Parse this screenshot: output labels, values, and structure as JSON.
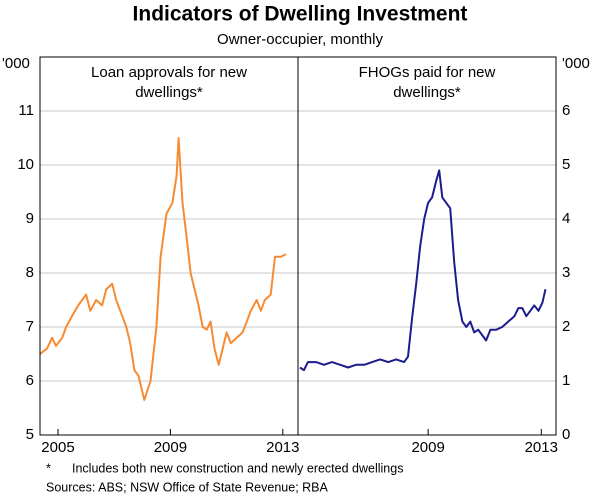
{
  "title": "Indicators of Dwelling Investment",
  "subtitle": "Owner-occupier, monthly",
  "chart_data": [
    {
      "type": "line",
      "title": [
        "Loan approvals for new",
        "dwellings*"
      ],
      "y_unit": "'000",
      "xlim": [
        2004.36,
        2013.54
      ],
      "xticks": [
        2005,
        2009,
        2013
      ],
      "ylim": [
        5,
        12
      ],
      "yticks": [
        5,
        6,
        7,
        8,
        9,
        10,
        11
      ],
      "grid": true,
      "series": [
        {
          "name": "Loan approvals for new dwellings",
          "color": "#f68b33",
          "x": [
            2004.36,
            2004.61,
            2004.79,
            2004.93,
            2005.15,
            2005.29,
            2005.5,
            2005.72,
            2005.86,
            2006.0,
            2006.15,
            2006.36,
            2006.57,
            2006.72,
            2006.93,
            2007.07,
            2007.29,
            2007.43,
            2007.57,
            2007.72,
            2007.86,
            2008.07,
            2008.29,
            2008.5,
            2008.65,
            2008.86,
            2009.07,
            2009.22,
            2009.29,
            2009.43,
            2009.57,
            2009.72,
            2009.86,
            2010.0,
            2010.15,
            2010.29,
            2010.43,
            2010.57,
            2010.72,
            2010.86,
            2011.0,
            2011.15,
            2011.36,
            2011.57,
            2011.72,
            2011.86,
            2012.07,
            2012.22,
            2012.36,
            2012.57,
            2012.72,
            2012.93,
            2013.11
          ],
          "values": [
            6.5,
            6.6,
            6.8,
            6.65,
            6.8,
            7.0,
            7.2,
            7.4,
            7.5,
            7.6,
            7.3,
            7.5,
            7.4,
            7.7,
            7.8,
            7.5,
            7.2,
            7.0,
            6.7,
            6.2,
            6.1,
            5.65,
            6.0,
            7.0,
            8.3,
            9.1,
            9.3,
            9.8,
            10.5,
            9.3,
            8.7,
            8.0,
            7.7,
            7.4,
            7.0,
            6.95,
            7.1,
            6.6,
            6.3,
            6.6,
            6.9,
            6.7,
            6.8,
            6.9,
            7.1,
            7.3,
            7.5,
            7.3,
            7.5,
            7.6,
            8.3,
            8.3,
            8.35
          ]
        }
      ]
    },
    {
      "type": "line",
      "title": [
        "FHOGs paid for new",
        "dwellings*"
      ],
      "y_unit": "'000",
      "xlim": [
        2004.4,
        2013.52
      ],
      "xticks": [
        2009,
        2013
      ],
      "ylim": [
        0,
        7
      ],
      "yticks": [
        0,
        1,
        2,
        3,
        4,
        5,
        6
      ],
      "grid": true,
      "series": [
        {
          "name": "FHOGs paid for new dwellings",
          "color": "#1c1c8c",
          "x": [
            2004.47,
            2004.61,
            2004.75,
            2005.04,
            2005.32,
            2005.6,
            2005.89,
            2006.17,
            2006.45,
            2006.74,
            2007.02,
            2007.3,
            2007.59,
            2007.87,
            2008.15,
            2008.29,
            2008.44,
            2008.58,
            2008.72,
            2008.86,
            2009.0,
            2009.14,
            2009.28,
            2009.39,
            2009.5,
            2009.64,
            2009.78,
            2009.92,
            2010.06,
            2010.21,
            2010.35,
            2010.49,
            2010.63,
            2010.77,
            2010.91,
            2011.05,
            2011.2,
            2011.41,
            2011.62,
            2011.83,
            2012.05,
            2012.19,
            2012.33,
            2012.47,
            2012.61,
            2012.75,
            2012.9,
            2013.04,
            2013.15
          ],
          "values": [
            1.25,
            1.2,
            1.35,
            1.35,
            1.3,
            1.35,
            1.3,
            1.25,
            1.3,
            1.3,
            1.35,
            1.4,
            1.35,
            1.4,
            1.35,
            1.45,
            2.2,
            2.8,
            3.5,
            4.0,
            4.3,
            4.4,
            4.7,
            4.9,
            4.4,
            4.3,
            4.2,
            3.2,
            2.5,
            2.1,
            2.0,
            2.1,
            1.9,
            1.95,
            1.85,
            1.75,
            1.95,
            1.95,
            2.0,
            2.1,
            2.2,
            2.35,
            2.35,
            2.2,
            2.3,
            2.4,
            2.3,
            2.45,
            2.7
          ]
        }
      ]
    }
  ],
  "notes": {
    "marker": "*",
    "text": "Includes both new construction and newly erected dwellings",
    "sources": "Sources: ABS; NSW Office of State Revenue; RBA"
  }
}
